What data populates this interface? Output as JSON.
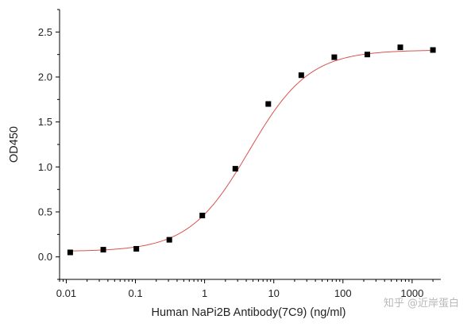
{
  "chart_data": {
    "type": "scatter",
    "xlabel": "Human NaPi2B Antibody(7C9) (ng/ml)",
    "ylabel": "OD450",
    "xscale": "log",
    "xlim": [
      0.008,
      2600
    ],
    "ylim": [
      -0.25,
      2.75
    ],
    "x_ticks": [
      0.01,
      0.1,
      1,
      10,
      100,
      1000
    ],
    "x_tick_labels": [
      "0.01",
      "0.1",
      "1",
      "10",
      "100",
      "1000"
    ],
    "y_ticks": [
      0.0,
      0.5,
      1.0,
      1.5,
      2.0,
      2.5
    ],
    "y_tick_labels": [
      "0.0",
      "0.5",
      "1.0",
      "1.5",
      "2.0",
      "2.5"
    ],
    "grid": false,
    "series": [
      {
        "marker": "square",
        "color": "#000000",
        "x": [
          0.0114,
          0.0343,
          0.103,
          0.309,
          0.926,
          2.78,
          8.33,
          25,
          75,
          225,
          675,
          2000
        ],
        "y": [
          0.05,
          0.08,
          0.09,
          0.19,
          0.46,
          0.98,
          1.7,
          2.02,
          2.22,
          2.25,
          2.33,
          2.3
        ]
      }
    ],
    "fit_curve": {
      "color": "#d9534f",
      "bottom": 0.06,
      "top": 2.3,
      "ec50": 4.4,
      "hill": 1.0
    }
  },
  "watermark": "知乎 @近岸蛋白"
}
